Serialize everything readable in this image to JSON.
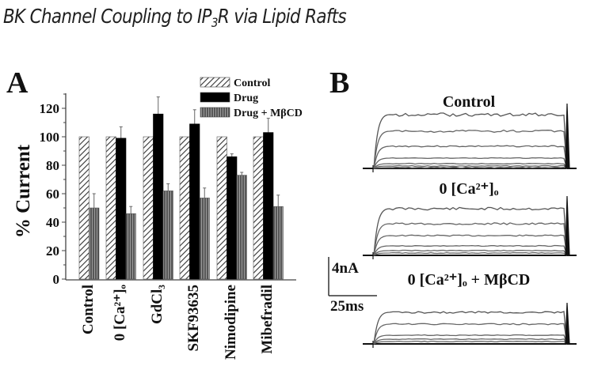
{
  "page": {
    "title_prefix": "BK Channel Coupling to IP",
    "title_sub": "3",
    "title_suffix": "R via Lipid Rafts"
  },
  "panel_a": {
    "label": "A",
    "ylabel": "% Current",
    "yticks": [
      "0",
      "20",
      "40",
      "60",
      "80",
      "100",
      "120"
    ],
    "legend": [
      "Control",
      "Drug",
      "Drug + MβCD"
    ],
    "categories": [
      "Control",
      "0 [Ca²⁺]ₒ",
      "GdCl₃",
      "SKF93635",
      "Nimodipine",
      "Mibefradil"
    ]
  },
  "panel_b": {
    "label": "B",
    "trace_titles": [
      "Control",
      "0 [Ca²⁺]ₒ",
      "0 [Ca²⁺]ₒ + MβCD"
    ],
    "scale_current": "4nA",
    "scale_time": "25ms"
  },
  "chart_data": [
    {
      "type": "bar",
      "title": "A",
      "xlabel": "",
      "ylabel": "% Current",
      "ylim": [
        0,
        130
      ],
      "yticks": [
        0,
        20,
        40,
        60,
        80,
        100,
        120
      ],
      "categories": [
        "Control",
        "0 [Ca2+]o",
        "GdCl3",
        "SKF93635",
        "Nimodipine",
        "Mibefradil"
      ],
      "series": [
        {
          "name": "Control",
          "pattern": "diagonal-hatch",
          "values": [
            100,
            100,
            100,
            100,
            100,
            100
          ],
          "errors": [
            0,
            0,
            0,
            0,
            0,
            0
          ]
        },
        {
          "name": "Drug",
          "pattern": "solid-black",
          "values": [
            null,
            99,
            116,
            109,
            86,
            103
          ],
          "errors": [
            null,
            8,
            12,
            10,
            2,
            10
          ]
        },
        {
          "name": "Drug + MβCD",
          "pattern": "vertical-stripes",
          "values": [
            50,
            46,
            62,
            57,
            73,
            51
          ],
          "errors": [
            10,
            5,
            5,
            7,
            2,
            8
          ]
        }
      ],
      "legend_position": "top-right",
      "grid": false
    },
    {
      "type": "line",
      "title": "B",
      "description": "Whole-cell BK current traces (family of voltage steps) under three conditions",
      "panels": [
        {
          "name": "Control",
          "steady_state_levels_nA": [
            10.3,
            8.2,
            6.2,
            4.5,
            2.2,
            1.0,
            0.4
          ]
        },
        {
          "name": "0 [Ca2+]o",
          "steady_state_levels_nA": [
            7.8,
            5.3,
            3.8,
            2.2,
            1.1,
            0.5
          ]
        },
        {
          "name": "0 [Ca2+]o + MβCD",
          "steady_state_levels_nA": [
            5.4,
            3.8,
            2.2,
            1.3,
            0.7,
            0.3
          ]
        }
      ],
      "scale_bar": {
        "current": "4nA",
        "time": "25ms"
      }
    }
  ]
}
